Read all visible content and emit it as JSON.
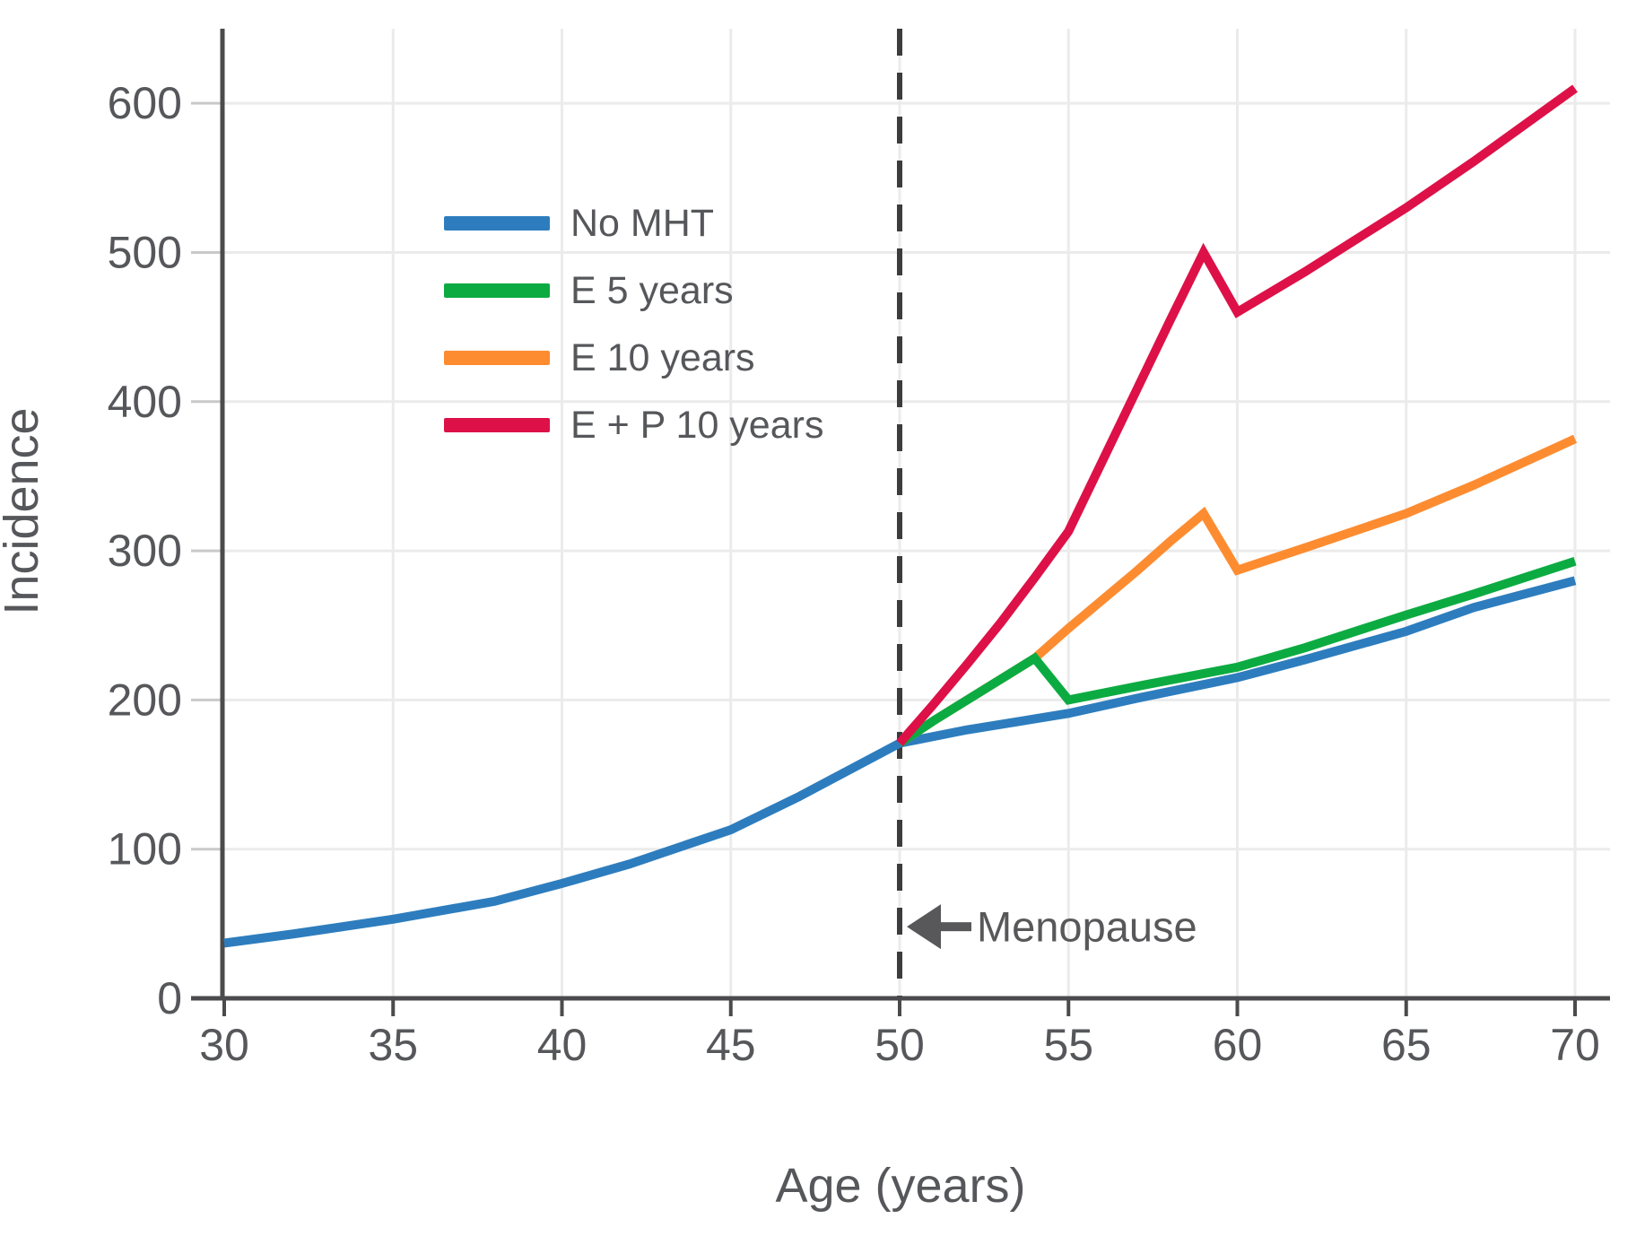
{
  "chart_data": {
    "type": "line",
    "title": "",
    "xlabel": "Age (years)",
    "ylabel": "Incidence",
    "xlim": [
      29,
      71
    ],
    "ylim": [
      0,
      650
    ],
    "xticks": [
      30,
      35,
      40,
      45,
      50,
      55,
      60,
      65,
      70
    ],
    "yticks": [
      0,
      100,
      200,
      300,
      400,
      500,
      600
    ],
    "grid": true,
    "legend_position": "upper-left-inside",
    "series": [
      {
        "name": "No MHT",
        "color": "#2d7dbe",
        "x": [
          30,
          32,
          35,
          38,
          40,
          42,
          45,
          47,
          50,
          52,
          55,
          57,
          60,
          62,
          65,
          67,
          70
        ],
        "y": [
          37,
          43,
          53,
          65,
          77,
          90,
          113,
          135,
          171,
          180,
          191,
          201,
          215,
          227,
          246,
          262,
          280
        ]
      },
      {
        "name": "E 5 years",
        "color": "#0cab42",
        "x": [
          50,
          51,
          52,
          53,
          54,
          55,
          57,
          60,
          62,
          65,
          67,
          70
        ],
        "y": [
          171,
          186,
          200,
          214,
          228,
          200,
          209,
          222,
          235,
          257,
          271,
          293
        ]
      },
      {
        "name": "E 10 years",
        "color": "#fd8c31",
        "x": [
          50,
          51,
          52,
          53,
          54,
          55,
          56,
          57,
          58,
          59,
          60,
          62,
          65,
          67,
          70
        ],
        "y": [
          171,
          186,
          200,
          214,
          228,
          248,
          267,
          286,
          306,
          325,
          287,
          302,
          325,
          344,
          375
        ]
      },
      {
        "name": "E + P 10 years",
        "color": "#dd1147",
        "x": [
          50,
          51,
          52,
          53,
          54,
          55,
          56,
          57,
          58,
          59,
          60,
          62,
          65,
          67,
          70
        ],
        "y": [
          171,
          197,
          224,
          252,
          282,
          313,
          360,
          407,
          454,
          500,
          460,
          487,
          530,
          561,
          610
        ]
      }
    ],
    "annotation": {
      "text": "Menopause",
      "arrow_direction": "left",
      "x": 50,
      "y": 48
    },
    "event_line": {
      "x": 50,
      "style": "dashed",
      "color": "#3c3c3e"
    },
    "colors": {
      "background": "#ffffff",
      "grid": "#ebebeb",
      "axis": "#4b4b4d",
      "text": "#56575a",
      "tick_stub": "#c9c9c9",
      "annotation": "#58585a"
    }
  }
}
